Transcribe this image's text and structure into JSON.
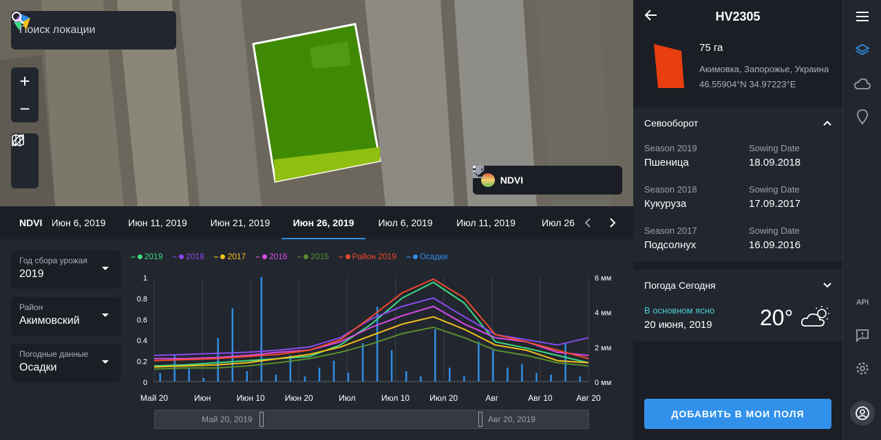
{
  "search": {
    "placeholder": "Поиск локации"
  },
  "map_tools": {
    "zoom_in": "+",
    "zoom_out": "−"
  },
  "layer": {
    "label": "NDVI"
  },
  "timeline": {
    "label": "NDVI",
    "dates": [
      "Июн 6, 2019",
      "Июн 11, 2019",
      "Июн 21, 2019",
      "Июн 26, 2019",
      "Июл 6, 2019",
      "Июл 11, 2019",
      "Июл 26"
    ],
    "active": "Июн 26, 2019"
  },
  "filters": [
    {
      "label": "Год сбора урожая",
      "value": "2019"
    },
    {
      "label": "Район",
      "value": "Акимовский"
    },
    {
      "label": "Погодные данные",
      "value": "Осадки"
    }
  ],
  "legend": [
    {
      "name": "2019",
      "color": "#3ddc84"
    },
    {
      "name": "2018",
      "color": "#8a4cf0"
    },
    {
      "name": "2017",
      "color": "#f2c21b"
    },
    {
      "name": "2016",
      "color": "#d94ce6"
    },
    {
      "name": "2015",
      "color": "#5a8f2e"
    },
    {
      "name": "Район 2019",
      "color": "#ef4a2a"
    },
    {
      "name": "Осадки",
      "color": "#2f8fe6"
    }
  ],
  "chart_data": {
    "type": "line",
    "x_ticks": [
      "Май 20",
      "Июн",
      "Июн 10",
      "Июн 20",
      "Июл",
      "Июл 10",
      "Июл 20",
      "Авг",
      "Авг 10",
      "Авг 20"
    ],
    "y_ticks_left": [
      "1",
      "0.8",
      "0.6",
      "0.4",
      "0.2",
      "0"
    ],
    "y_ticks_right": [
      "6 мм",
      "4 мм",
      "2 мм",
      "0 мм"
    ],
    "ylim": [
      0,
      1
    ],
    "ylim_right": [
      0,
      6
    ],
    "series": [
      {
        "name": "2019",
        "color": "#3ddc84",
        "values": [
          0.15,
          0.16,
          0.18,
          0.2,
          0.22,
          0.24,
          0.35,
          0.55,
          0.8,
          0.95,
          0.75,
          0.38,
          0.32,
          0.25,
          0.18
        ]
      },
      {
        "name": "2018",
        "color": "#8a4cf0",
        "values": [
          0.25,
          0.26,
          0.27,
          0.28,
          0.3,
          0.33,
          0.42,
          0.6,
          0.72,
          0.8,
          0.62,
          0.45,
          0.4,
          0.35,
          0.42
        ]
      },
      {
        "name": "2017",
        "color": "#f2c21b",
        "values": [
          0.14,
          0.15,
          0.16,
          0.18,
          0.22,
          0.26,
          0.33,
          0.44,
          0.55,
          0.62,
          0.5,
          0.35,
          0.3,
          0.2,
          0.18
        ]
      },
      {
        "name": "2016",
        "color": "#d94ce6",
        "values": [
          0.22,
          0.22,
          0.23,
          0.25,
          0.28,
          0.3,
          0.38,
          0.52,
          0.63,
          0.72,
          0.55,
          0.42,
          0.38,
          0.28,
          0.25
        ]
      },
      {
        "name": "2015",
        "color": "#5a8f2e",
        "values": [
          0.12,
          0.13,
          0.13,
          0.15,
          0.18,
          0.22,
          0.28,
          0.36,
          0.46,
          0.52,
          0.42,
          0.3,
          0.25,
          0.18,
          0.15
        ]
      },
      {
        "name": "Район 2019",
        "color": "#ef4a2a",
        "values": [
          0.2,
          0.21,
          0.22,
          0.24,
          0.26,
          0.3,
          0.4,
          0.62,
          0.85,
          0.98,
          0.8,
          0.45,
          0.38,
          0.3,
          0.22
        ]
      }
    ],
    "precip": [
      0.5,
      1.5,
      0.8,
      0.2,
      2.5,
      4.2,
      0.6,
      6.0,
      0.4,
      1.5,
      0.3,
      0.8,
      1.2,
      0.5,
      2.2,
      4.3,
      1.8,
      0.6,
      0.3,
      3.0,
      0.8,
      0.3,
      2.3,
      1.8,
      0.8,
      1.0,
      0.5,
      0.4,
      2.2,
      0.3
    ],
    "range": {
      "start": "Май 20, 2019",
      "end": "Авг 20, 2019"
    }
  },
  "field": {
    "title": "HV2305",
    "area": "75 га",
    "location": "Акимовка, Запорожье, Украина",
    "coords": "46.55904°N 34.97223°E",
    "color": "#e83e10"
  },
  "rotation": {
    "title": "Севооборот",
    "rows": [
      {
        "season": "Season 2019",
        "crop": "Пшеница",
        "sowing_label": "Sowing Date",
        "sowing": "18.09.2018"
      },
      {
        "season": "Season 2018",
        "crop": "Кукуруза",
        "sowing_label": "Sowing Date",
        "sowing": "17.09.2017"
      },
      {
        "season": "Season 2017",
        "crop": "Подсолнух",
        "sowing_label": "Sowing Date",
        "sowing": "16.09.2016"
      }
    ]
  },
  "weather": {
    "title": "Погода Сегодня",
    "condition": "В основном ясно",
    "date": "20 июня, 2019",
    "temp": "20°"
  },
  "add_button": "ДОБАВИТЬ В МОИ ПОЛЯ",
  "rail": {
    "api": "API"
  }
}
